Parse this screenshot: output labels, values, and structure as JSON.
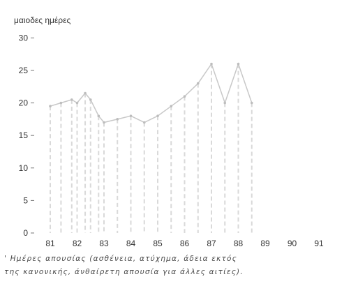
{
  "chart_data": {
    "type": "line",
    "title": "",
    "ylabel": "μαιοδες ημέρες",
    "xlabel": "",
    "x_ticks": [
      "81",
      "82",
      "83",
      "84",
      "85",
      "86",
      "87",
      "88",
      "89",
      "90",
      "91"
    ],
    "y_ticks": [
      "0",
      "5",
      "10",
      "15",
      "20",
      "25",
      "30"
    ],
    "ylim": [
      0,
      31
    ],
    "grid": false,
    "x": [
      81.0,
      81.4,
      81.8,
      82.0,
      82.3,
      82.5,
      82.8,
      83.0,
      83.5,
      84.0,
      84.5,
      85.0,
      85.5,
      86.0,
      86.5,
      87.0,
      87.5,
      88.0,
      88.5
    ],
    "series": [
      {
        "values": [
          19.5,
          20.0,
          20.5,
          20.0,
          21.5,
          20.5,
          18.0,
          17.0,
          17.5,
          18.0,
          17.0,
          18.0,
          19.5,
          21.0,
          23.0,
          26.0,
          20.0,
          26.0,
          20.0
        ]
      }
    ]
  },
  "caption": {
    "line1": "' Ημέρες  απουσίας (ασθένεια, ατύχημα, άδεια εκτός",
    "line2": "της κανονικής, άνθαίρετη απουσία για άλλες αιτίες)."
  },
  "colors": {
    "line": "#c8c8c8",
    "text": "#2f2f2f"
  }
}
